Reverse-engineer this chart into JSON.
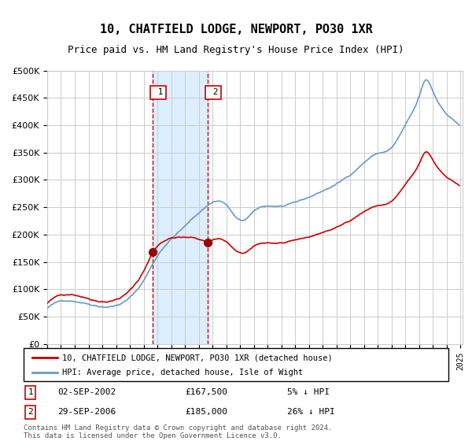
{
  "title": "10, CHATFIELD LODGE, NEWPORT, PO30 1XR",
  "subtitle": "Price paid vs. HM Land Registry's House Price Index (HPI)",
  "legend_line1": "10, CHATFIELD LODGE, NEWPORT, PO30 1XR (detached house)",
  "legend_line2": "HPI: Average price, detached house, Isle of Wight",
  "transaction1_date": "02-SEP-2002",
  "transaction1_price": 167500,
  "transaction1_label": "5% ↓ HPI",
  "transaction2_date": "29-SEP-2006",
  "transaction2_price": 185000,
  "transaction2_label": "26% ↓ HPI",
  "footnote1": "Contains HM Land Registry data © Crown copyright and database right 2024.",
  "footnote2": "This data is licensed under the Open Government Licence v3.0.",
  "hpi_color": "#6699cc",
  "price_color": "#cc0000",
  "marker_color": "#990000",
  "shade_color": "#ddeeff",
  "dashed_color": "#cc0000",
  "grid_color": "#cccccc",
  "background_color": "#ffffff",
  "ylim": [
    0,
    500000
  ],
  "ylabel_ticks": [
    0,
    50000,
    100000,
    150000,
    200000,
    250000,
    300000,
    350000,
    400000,
    450000,
    500000
  ]
}
